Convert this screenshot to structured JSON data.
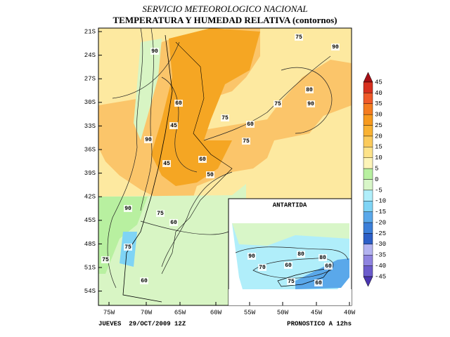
{
  "header": {
    "title": "SERVICIO METEOROLOGICO NACIONAL",
    "subtitle": "TEMPERATURA Y HUMEDAD RELATIVA (contornos)"
  },
  "map": {
    "lat_labels": [
      "21S",
      "24S",
      "27S",
      "30S",
      "33S",
      "36S",
      "39S",
      "42S",
      "45S",
      "48S",
      "51S",
      "54S"
    ],
    "lon_labels": [
      "75W",
      "70W",
      "65W",
      "60W",
      "55W",
      "50W",
      "45W",
      "40W"
    ],
    "contour_labels": [
      75,
      90,
      90,
      80,
      75,
      90,
      60,
      75,
      60,
      45,
      75,
      90,
      60,
      45,
      50,
      90,
      75,
      60,
      75,
      75,
      60
    ],
    "inset": {
      "title": "ANTARTIDA",
      "contour_labels": [
        90,
        80,
        80,
        70,
        60,
        60,
        75,
        60
      ]
    }
  },
  "colorbar": {
    "labels": [
      45,
      40,
      35,
      30,
      25,
      20,
      15,
      10,
      5,
      0,
      -5,
      -10,
      -15,
      -20,
      -25,
      -30,
      -35,
      -40,
      -45
    ],
    "colors": [
      "#a50f15",
      "#d7301f",
      "#ef5a2a",
      "#f47c20",
      "#f79a1e",
      "#f9b233",
      "#fbcb5c",
      "#fde38a",
      "#fdf4b8",
      "#b8f0a0",
      "#d8f6c8",
      "#b0eefa",
      "#7fd4f5",
      "#5aa8ea",
      "#3c7fd9",
      "#2d5fc7",
      "#b3b3f0",
      "#8f84e0",
      "#6c5ccc",
      "#4a35b0"
    ]
  },
  "footer": {
    "left": "JUEVES  29/OCT/2009 12Z",
    "right": "PRONOSTICO A 12hs"
  }
}
